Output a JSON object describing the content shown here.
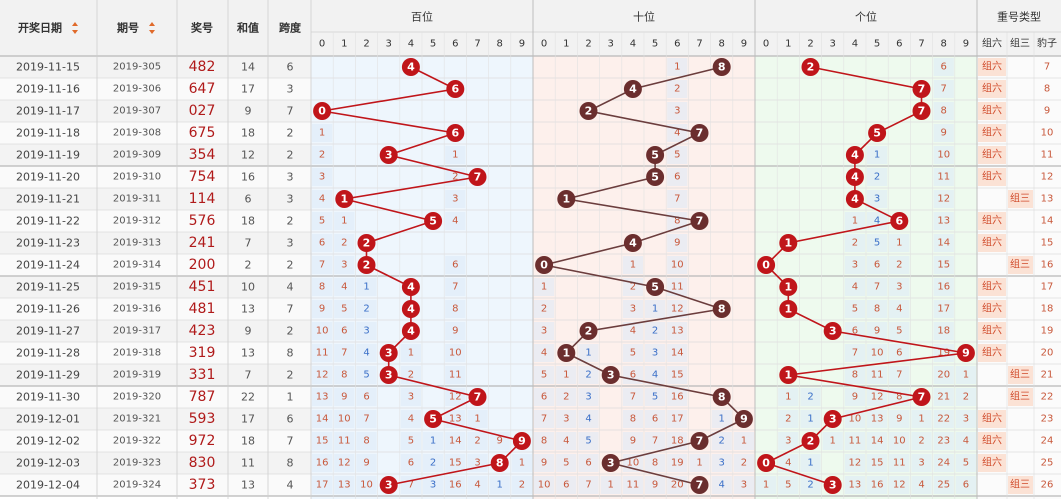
{
  "header": {
    "date": "开奖日期",
    "issue": "期号",
    "prize": "奖号",
    "sum": "和值",
    "span": "跨度",
    "hundreds": "百位",
    "tens": "十位",
    "units": "个位",
    "repeat_type": "重号类型",
    "group_six": "组六",
    "group_three": "组三",
    "leopard": "豹子",
    "digits": [
      "0",
      "1",
      "2",
      "3",
      "4",
      "5",
      "6",
      "7",
      "8",
      "9"
    ]
  },
  "colors": {
    "ball": "#c0151a",
    "ball_dark": "#6b2e2e",
    "line_red": "#c0151a",
    "line_dark": "#6b3d3d",
    "miss_red": "#c8583b",
    "miss_blue": "#3a6fc8",
    "miss_gray": "#888888",
    "tag_bg": "#fbe2d5",
    "tag_text": "#d04a2a"
  },
  "chart_data": {
    "type": "table",
    "rows": [
      {
        "date": "2019-11-15",
        "issue": "2019-305",
        "prize": "482",
        "sum": "14",
        "span": "6",
        "digits": [
          4,
          8,
          2
        ]
      },
      {
        "date": "2019-11-16",
        "issue": "2019-306",
        "prize": "647",
        "sum": "17",
        "span": "3",
        "digits": [
          6,
          4,
          7
        ]
      },
      {
        "date": "2019-11-17",
        "issue": "2019-307",
        "prize": "027",
        "sum": "9",
        "span": "7",
        "digits": [
          0,
          2,
          7
        ]
      },
      {
        "date": "2019-11-18",
        "issue": "2019-308",
        "prize": "675",
        "sum": "18",
        "span": "2",
        "digits": [
          6,
          7,
          5
        ]
      },
      {
        "date": "2019-11-19",
        "issue": "2019-309",
        "prize": "354",
        "sum": "12",
        "span": "2",
        "digits": [
          3,
          5,
          4
        ]
      },
      {
        "date": "2019-11-20",
        "issue": "2019-310",
        "prize": "754",
        "sum": "16",
        "span": "3",
        "digits": [
          7,
          5,
          4
        ]
      },
      {
        "date": "2019-11-21",
        "issue": "2019-311",
        "prize": "114",
        "sum": "6",
        "span": "3",
        "digits": [
          1,
          1,
          4
        ]
      },
      {
        "date": "2019-11-22",
        "issue": "2019-312",
        "prize": "576",
        "sum": "18",
        "span": "2",
        "digits": [
          5,
          7,
          6
        ]
      },
      {
        "date": "2019-11-23",
        "issue": "2019-313",
        "prize": "241",
        "sum": "7",
        "span": "3",
        "digits": [
          2,
          4,
          1
        ]
      },
      {
        "date": "2019-11-24",
        "issue": "2019-314",
        "prize": "200",
        "sum": "2",
        "span": "2",
        "digits": [
          2,
          0,
          0
        ]
      },
      {
        "date": "2019-11-25",
        "issue": "2019-315",
        "prize": "451",
        "sum": "10",
        "span": "4",
        "digits": [
          4,
          5,
          1
        ]
      },
      {
        "date": "2019-11-26",
        "issue": "2019-316",
        "prize": "481",
        "sum": "13",
        "span": "7",
        "digits": [
          4,
          8,
          1
        ]
      },
      {
        "date": "2019-11-27",
        "issue": "2019-317",
        "prize": "423",
        "sum": "9",
        "span": "2",
        "digits": [
          4,
          2,
          3
        ]
      },
      {
        "date": "2019-11-28",
        "issue": "2019-318",
        "prize": "319",
        "sum": "13",
        "span": "8",
        "digits": [
          3,
          1,
          9
        ]
      },
      {
        "date": "2019-11-29",
        "issue": "2019-319",
        "prize": "331",
        "sum": "7",
        "span": "2",
        "digits": [
          3,
          3,
          1
        ]
      },
      {
        "date": "2019-11-30",
        "issue": "2019-320",
        "prize": "787",
        "sum": "22",
        "span": "1",
        "digits": [
          7,
          8,
          7
        ]
      },
      {
        "date": "2019-12-01",
        "issue": "2019-321",
        "prize": "593",
        "sum": "17",
        "span": "6",
        "digits": [
          5,
          9,
          3
        ]
      },
      {
        "date": "2019-12-02",
        "issue": "2019-322",
        "prize": "972",
        "sum": "18",
        "span": "7",
        "digits": [
          9,
          7,
          2
        ]
      },
      {
        "date": "2019-12-03",
        "issue": "2019-323",
        "prize": "830",
        "sum": "11",
        "span": "8",
        "digits": [
          8,
          3,
          0
        ]
      },
      {
        "date": "2019-12-04",
        "issue": "2019-324",
        "prize": "373",
        "sum": "13",
        "span": "4",
        "digits": [
          3,
          7,
          3
        ]
      }
    ],
    "missing": {
      "hundreds": [
        [
          "",
          "",
          "",
          "",
          "4",
          "",
          "",
          "",
          "",
          ""
        ],
        [
          "",
          "",
          "",
          "",
          "",
          "",
          "6",
          "",
          "",
          ""
        ],
        [
          "0",
          "",
          "",
          "",
          "",
          "",
          "",
          "",
          "",
          ""
        ],
        [
          "1",
          "",
          "",
          "",
          "",
          "",
          "6",
          "",
          "",
          ""
        ],
        [
          "2",
          "",
          "",
          "3",
          "",
          "",
          "1",
          "",
          "",
          ""
        ],
        [
          "3",
          "",
          "",
          "",
          "",
          "",
          "2",
          "7",
          "",
          ""
        ],
        [
          "4",
          "1",
          "",
          "",
          "",
          "",
          "3",
          "",
          "",
          ""
        ],
        [
          "5",
          "1",
          "",
          "",
          "",
          "5",
          "4",
          "",
          "",
          ""
        ],
        [
          "6",
          "2",
          "2",
          "",
          "",
          "",
          "",
          "",
          "",
          ""
        ],
        [
          "7",
          "3",
          "2",
          "",
          "",
          "",
          "6",
          "",
          "",
          ""
        ],
        [
          "8",
          "4",
          "1",
          "",
          "4",
          "",
          "7",
          "",
          "",
          ""
        ],
        [
          "9",
          "5",
          "2",
          "",
          "4",
          "",
          "8",
          "",
          "",
          ""
        ],
        [
          "10",
          "6",
          "3",
          "",
          "4",
          "",
          "9",
          "",
          "",
          ""
        ],
        [
          "11",
          "7",
          "4",
          "3",
          "1",
          "",
          "10",
          "",
          "",
          ""
        ],
        [
          "12",
          "8",
          "5",
          "3",
          "2",
          "",
          "11",
          "",
          "",
          ""
        ],
        [
          "13",
          "9",
          "6",
          "",
          "3",
          "",
          "12",
          "7",
          "",
          ""
        ],
        [
          "14",
          "10",
          "7",
          "",
          "4",
          "5",
          "13",
          "1",
          "",
          ""
        ],
        [
          "15",
          "11",
          "8",
          "",
          "5",
          "1",
          "14",
          "2",
          "9",
          ""
        ],
        [
          "16",
          "12",
          "9",
          "",
          "6",
          "2",
          "15",
          "3",
          "8",
          "1"
        ],
        [
          "17",
          "13",
          "10",
          "3",
          "7",
          "3",
          "16",
          "4",
          "1",
          "2"
        ]
      ],
      "tens": [
        [
          "",
          "",
          "",
          "",
          "",
          "",
          "1",
          "",
          "8",
          ""
        ],
        [
          "",
          "",
          "",
          "",
          "4",
          "",
          "2",
          "",
          "",
          ""
        ],
        [
          "",
          "",
          "2",
          "",
          "",
          "",
          "3",
          "",
          "",
          ""
        ],
        [
          "",
          "",
          "",
          "",
          "",
          "",
          "4",
          "7",
          "",
          ""
        ],
        [
          "",
          "",
          "",
          "",
          "",
          "5",
          "5",
          "",
          "",
          ""
        ],
        [
          "",
          "",
          "",
          "",
          "",
          "5",
          "6",
          "",
          "",
          ""
        ],
        [
          "",
          "1",
          "",
          "",
          "",
          "",
          "7",
          "",
          "",
          ""
        ],
        [
          "",
          "",
          "",
          "",
          "",
          "",
          "8",
          "7",
          "",
          ""
        ],
        [
          "",
          "",
          "",
          "",
          "4",
          "",
          "9",
          "",
          "",
          ""
        ],
        [
          "0",
          "",
          "",
          "",
          "1",
          "",
          "10",
          "",
          "",
          ""
        ],
        [
          "1",
          "",
          "",
          "",
          "2",
          "5",
          "11",
          "",
          "",
          ""
        ],
        [
          "2",
          "",
          "",
          "",
          "3",
          "1",
          "12",
          "",
          "8",
          ""
        ],
        [
          "3",
          "",
          "2",
          "",
          "4",
          "2",
          "13",
          "",
          "",
          ""
        ],
        [
          "4",
          "1",
          "1",
          "",
          "5",
          "3",
          "14",
          "",
          "",
          ""
        ],
        [
          "5",
          "1",
          "2",
          "3",
          "6",
          "4",
          "15",
          "",
          "",
          ""
        ],
        [
          "6",
          "2",
          "3",
          "",
          "7",
          "5",
          "16",
          "",
          "8",
          ""
        ],
        [
          "7",
          "3",
          "4",
          "",
          "8",
          "6",
          "17",
          "",
          "1",
          "9"
        ],
        [
          "8",
          "4",
          "5",
          "",
          "9",
          "7",
          "18",
          "7",
          "2",
          "1"
        ],
        [
          "9",
          "5",
          "6",
          "3",
          "10",
          "8",
          "19",
          "1",
          "3",
          "2"
        ],
        [
          "10",
          "6",
          "7",
          "1",
          "11",
          "9",
          "20",
          "7",
          "4",
          "3"
        ]
      ],
      "units": [
        [
          "",
          "",
          "2",
          "",
          "",
          "",
          "",
          "",
          "6",
          ""
        ],
        [
          "",
          "",
          "",
          "",
          "",
          "",
          "",
          "7",
          "7",
          ""
        ],
        [
          "",
          "",
          "",
          "",
          "",
          "",
          "",
          "7",
          "8",
          ""
        ],
        [
          "",
          "",
          "",
          "",
          "",
          "5",
          "",
          "",
          "9",
          ""
        ],
        [
          "",
          "",
          "",
          "",
          "4",
          "1",
          "",
          "",
          "10",
          ""
        ],
        [
          "",
          "",
          "",
          "",
          "4",
          "2",
          "",
          "",
          "11",
          ""
        ],
        [
          "",
          "",
          "",
          "",
          "4",
          "3",
          "",
          "",
          "12",
          ""
        ],
        [
          "",
          "",
          "",
          "",
          "1",
          "4",
          "6",
          "",
          "13",
          ""
        ],
        [
          "",
          "1",
          "",
          "",
          "2",
          "5",
          "1",
          "",
          "14",
          ""
        ],
        [
          "0",
          "",
          "",
          "",
          "3",
          "6",
          "2",
          "",
          "15",
          ""
        ],
        [
          "",
          "1",
          "",
          "",
          "4",
          "7",
          "3",
          "",
          "16",
          ""
        ],
        [
          "",
          "1",
          "",
          "",
          "5",
          "8",
          "4",
          "",
          "17",
          ""
        ],
        [
          "",
          "",
          "",
          "3",
          "6",
          "9",
          "5",
          "",
          "18",
          ""
        ],
        [
          "",
          "",
          "",
          "",
          "7",
          "10",
          "6",
          "",
          "19",
          "9"
        ],
        [
          "",
          "1",
          "",
          "",
          "8",
          "11",
          "7",
          "",
          "20",
          "1"
        ],
        [
          "",
          "1",
          "2",
          "",
          "9",
          "12",
          "8",
          "7",
          "21",
          "2"
        ],
        [
          "",
          "2",
          "1",
          "3",
          "10",
          "13",
          "9",
          "1",
          "22",
          "3"
        ],
        [
          "",
          "3",
          "2",
          "1",
          "11",
          "14",
          "10",
          "2",
          "23",
          "4"
        ],
        [
          "0",
          "4",
          "1",
          "",
          "12",
          "15",
          "11",
          "3",
          "24",
          "5"
        ],
        [
          "1",
          "5",
          "2",
          "3",
          "13",
          "16",
          "12",
          "4",
          "25",
          "6"
        ]
      ],
      "group_six": [
        "组六",
        "组六",
        "组六",
        "组六",
        "组六",
        "组六",
        "",
        "组六",
        "组六",
        "",
        "组六",
        "组六",
        "组六",
        "组六",
        "",
        "",
        "组六",
        "组六",
        "组六",
        ""
      ],
      "group_three": [
        "",
        "",
        "",
        "",
        "",
        "",
        "组三",
        "",
        "",
        "组三",
        "",
        "",
        "",
        "",
        "组三",
        "组三",
        "",
        "",
        "",
        "组三"
      ],
      "leopard": [
        "7",
        "8",
        "9",
        "10",
        "11",
        "12",
        "13",
        "14",
        "15",
        "16",
        "17",
        "18",
        "19",
        "20",
        "21",
        "22",
        "23",
        "24",
        "25",
        "26"
      ]
    }
  }
}
